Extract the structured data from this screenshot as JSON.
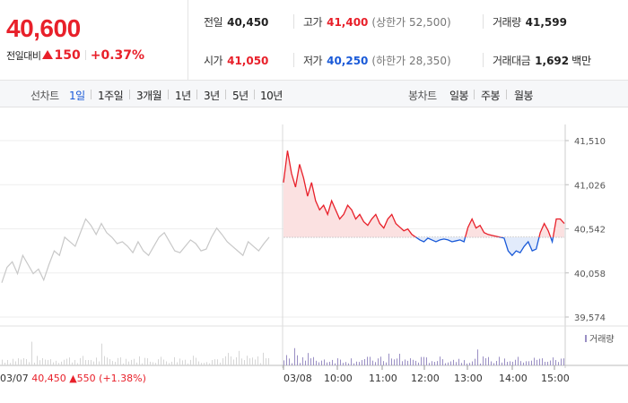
{
  "quote": {
    "current_price": "40,600",
    "change_label": "전일대비",
    "change_value": "150",
    "change_pct": "+0.37%",
    "stats": {
      "prev_close": {
        "label": "전일",
        "value": "40,450"
      },
      "high": {
        "label": "고가",
        "value": "41,400",
        "sub": "(상한가 52,500)"
      },
      "volume": {
        "label": "거래량",
        "value": "41,599"
      },
      "open": {
        "label": "시가",
        "value": "41,050"
      },
      "low": {
        "label": "저가",
        "value": "40,250",
        "sub": "(하한가 28,350)"
      },
      "amount": {
        "label": "거래대금",
        "value": "1,692",
        "unit": "백만"
      }
    }
  },
  "toolbar": {
    "line_chart_label": "선차트",
    "line_tabs": [
      "1일",
      "1주일",
      "3개월",
      "1년",
      "3년",
      "5년",
      "10년"
    ],
    "active_line_tab": "1일",
    "candle_chart_label": "봉차트",
    "candle_tabs": [
      "일봉",
      "주봉",
      "월봉"
    ]
  },
  "chart_data": {
    "type": "line",
    "ylim": [
      39574,
      41510
    ],
    "y_ticks": [
      "41,510",
      "41,026",
      "40,542",
      "40,058",
      "39,574"
    ],
    "baseline": 40450,
    "x_ticks": [
      "03/07",
      "03/08",
      "10:00",
      "11:00",
      "12:00",
      "13:00",
      "14:00",
      "15:00"
    ],
    "prev_day_label": {
      "date": "03/07",
      "close": "40,450",
      "change": "550",
      "change_pct": "(+1.38%)"
    },
    "volume_legend": "거래량",
    "series": [
      {
        "values_prev_day": [
          39950,
          40120,
          40180,
          40050,
          40250,
          40150,
          40050,
          40100,
          39980,
          40150,
          40300,
          40250,
          40450,
          40400,
          40350,
          40500,
          40650,
          40580,
          40480,
          40600,
          40500,
          40450,
          40380,
          40400,
          40350,
          40280,
          40400,
          40300,
          40250,
          40350,
          40450,
          40500,
          40400,
          40300,
          40280,
          40350,
          40420,
          40380,
          40300,
          40320,
          40450,
          40550,
          40480,
          40400,
          40350,
          40300,
          40250,
          40400,
          40350,
          40300,
          40380,
          40450
        ],
        "values_today": [
          41050,
          41400,
          41150,
          41000,
          41250,
          41100,
          40900,
          41050,
          40850,
          40750,
          40800,
          40700,
          40850,
          40750,
          40650,
          40700,
          40800,
          40750,
          40650,
          40700,
          40620,
          40580,
          40650,
          40700,
          40600,
          40550,
          40650,
          40700,
          40600,
          40560,
          40520,
          40540,
          40480,
          40450,
          40420,
          40400,
          40440,
          40420,
          40400,
          40420,
          40430,
          40420,
          40400,
          40410,
          40420,
          40400,
          40560,
          40650,
          40550,
          40580,
          40500,
          40480,
          40470,
          40460,
          40450,
          40440,
          40300,
          40250,
          40300,
          40280,
          40350,
          40400,
          40300,
          40320,
          40500,
          40600,
          40520,
          40400,
          40650,
          40650,
          40600
        ]
      }
    ]
  },
  "colors": {
    "up": "#e8202a",
    "down": "#1a5ad8",
    "prev_line": "#c8c8c8",
    "volume": "#9a8fc4"
  }
}
